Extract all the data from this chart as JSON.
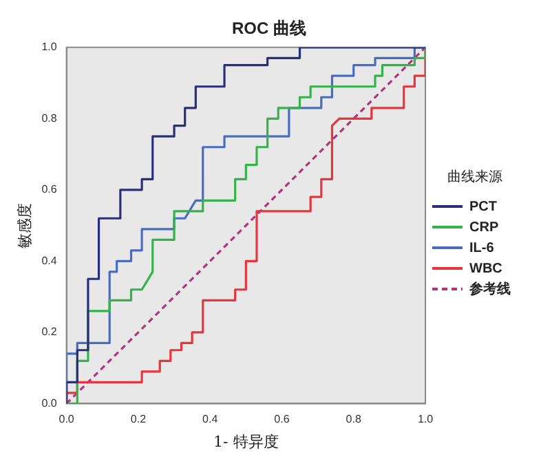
{
  "chart_data": {
    "type": "line",
    "title": "ROC 曲线",
    "xlabel": "1- 特异度",
    "ylabel": "敏感度",
    "legend_title": "曲线来源",
    "legend": "right",
    "grid": false,
    "marker": "none",
    "xlim": [
      0,
      1
    ],
    "ylim": [
      0,
      1
    ],
    "xticks": [
      {
        "value": 0,
        "label": "0.0"
      },
      0.2,
      0.4,
      0.6,
      0.8,
      {
        "value": 1,
        "label": "1.0"
      }
    ],
    "yticks": [
      {
        "value": 0,
        "label": "0.0"
      },
      0.2,
      0.4,
      0.6,
      0.8,
      {
        "value": 1,
        "label": "1.0"
      }
    ],
    "series": [
      {
        "name": "PCT",
        "color": "#2b2f7a",
        "line_style": "solid",
        "x": [
          0,
          0,
          0.03,
          0.03,
          0.06,
          0.06,
          0.09,
          0.09,
          0.15,
          0.15,
          0.21,
          0.21,
          0.24,
          0.24,
          0.3,
          0.3,
          0.33,
          0.33,
          0.36,
          0.36,
          0.44,
          0.44,
          0.56,
          0.56,
          0.65,
          0.65,
          1
        ],
        "values": [
          0,
          0.06,
          0.06,
          0.15,
          0.15,
          0.35,
          0.35,
          0.52,
          0.52,
          0.6,
          0.6,
          0.63,
          0.63,
          0.75,
          0.75,
          0.78,
          0.78,
          0.83,
          0.83,
          0.89,
          0.89,
          0.95,
          0.95,
          0.97,
          0.97,
          1,
          1
        ]
      },
      {
        "name": "CRP",
        "color": "#33b34a",
        "line_style": "solid",
        "x": [
          0,
          0.03,
          0.03,
          0.06,
          0.06,
          0.12,
          0.12,
          0.18,
          0.18,
          0.21,
          0.24,
          0.24,
          0.3,
          0.3,
          0.38,
          0.38,
          0.47,
          0.47,
          0.5,
          0.5,
          0.53,
          0.53,
          0.56,
          0.56,
          0.59,
          0.59,
          0.65,
          0.65,
          0.68,
          0.68,
          0.86,
          0.86,
          0.88,
          0.88,
          0.97,
          0.97,
          1,
          1
        ],
        "values": [
          0,
          0,
          0.12,
          0.12,
          0.26,
          0.26,
          0.29,
          0.29,
          0.32,
          0.32,
          0.37,
          0.46,
          0.46,
          0.54,
          0.54,
          0.57,
          0.57,
          0.63,
          0.63,
          0.67,
          0.67,
          0.72,
          0.72,
          0.8,
          0.8,
          0.83,
          0.83,
          0.86,
          0.86,
          0.89,
          0.89,
          0.92,
          0.92,
          0.95,
          0.95,
          0.97,
          0.97,
          1
        ]
      },
      {
        "name": "IL-6",
        "color": "#4a6cc0",
        "line_style": "solid",
        "x": [
          0,
          0,
          0.03,
          0.03,
          0.12,
          0.12,
          0.14,
          0.14,
          0.18,
          0.18,
          0.21,
          0.21,
          0.3,
          0.3,
          0.33,
          0.36,
          0.38,
          0.38,
          0.44,
          0.44,
          0.62,
          0.62,
          0.71,
          0.71,
          0.74,
          0.74,
          0.8,
          0.8,
          0.86,
          0.86,
          0.97,
          0.97,
          1
        ],
        "values": [
          0,
          0.14,
          0.14,
          0.17,
          0.17,
          0.37,
          0.37,
          0.4,
          0.4,
          0.43,
          0.43,
          0.49,
          0.49,
          0.52,
          0.52,
          0.57,
          0.57,
          0.72,
          0.72,
          0.75,
          0.75,
          0.83,
          0.83,
          0.86,
          0.86,
          0.92,
          0.92,
          0.95,
          0.95,
          0.97,
          0.97,
          1,
          1
        ]
      },
      {
        "name": "WBC",
        "color": "#e8343c",
        "line_style": "solid",
        "x": [
          0,
          0,
          0.03,
          0.03,
          0.21,
          0.21,
          0.26,
          0.26,
          0.29,
          0.29,
          0.32,
          0.32,
          0.35,
          0.35,
          0.38,
          0.38,
          0.47,
          0.47,
          0.5,
          0.5,
          0.53,
          0.53,
          0.68,
          0.68,
          0.71,
          0.71,
          0.74,
          0.74,
          0.76,
          0.85,
          0.85,
          0.94,
          0.94,
          0.97,
          0.97,
          1,
          1
        ],
        "values": [
          0,
          0.03,
          0.03,
          0.06,
          0.06,
          0.09,
          0.09,
          0.12,
          0.12,
          0.15,
          0.15,
          0.17,
          0.17,
          0.2,
          0.2,
          0.29,
          0.29,
          0.32,
          0.32,
          0.4,
          0.4,
          0.54,
          0.54,
          0.58,
          0.58,
          0.63,
          0.63,
          0.78,
          0.8,
          0.8,
          0.83,
          0.83,
          0.89,
          0.89,
          0.92,
          0.92,
          1
        ]
      },
      {
        "name": "参考线",
        "color": "#b0357a",
        "line_style": "dashed",
        "x": [
          0,
          1
        ],
        "values": [
          0,
          1
        ]
      }
    ]
  }
}
